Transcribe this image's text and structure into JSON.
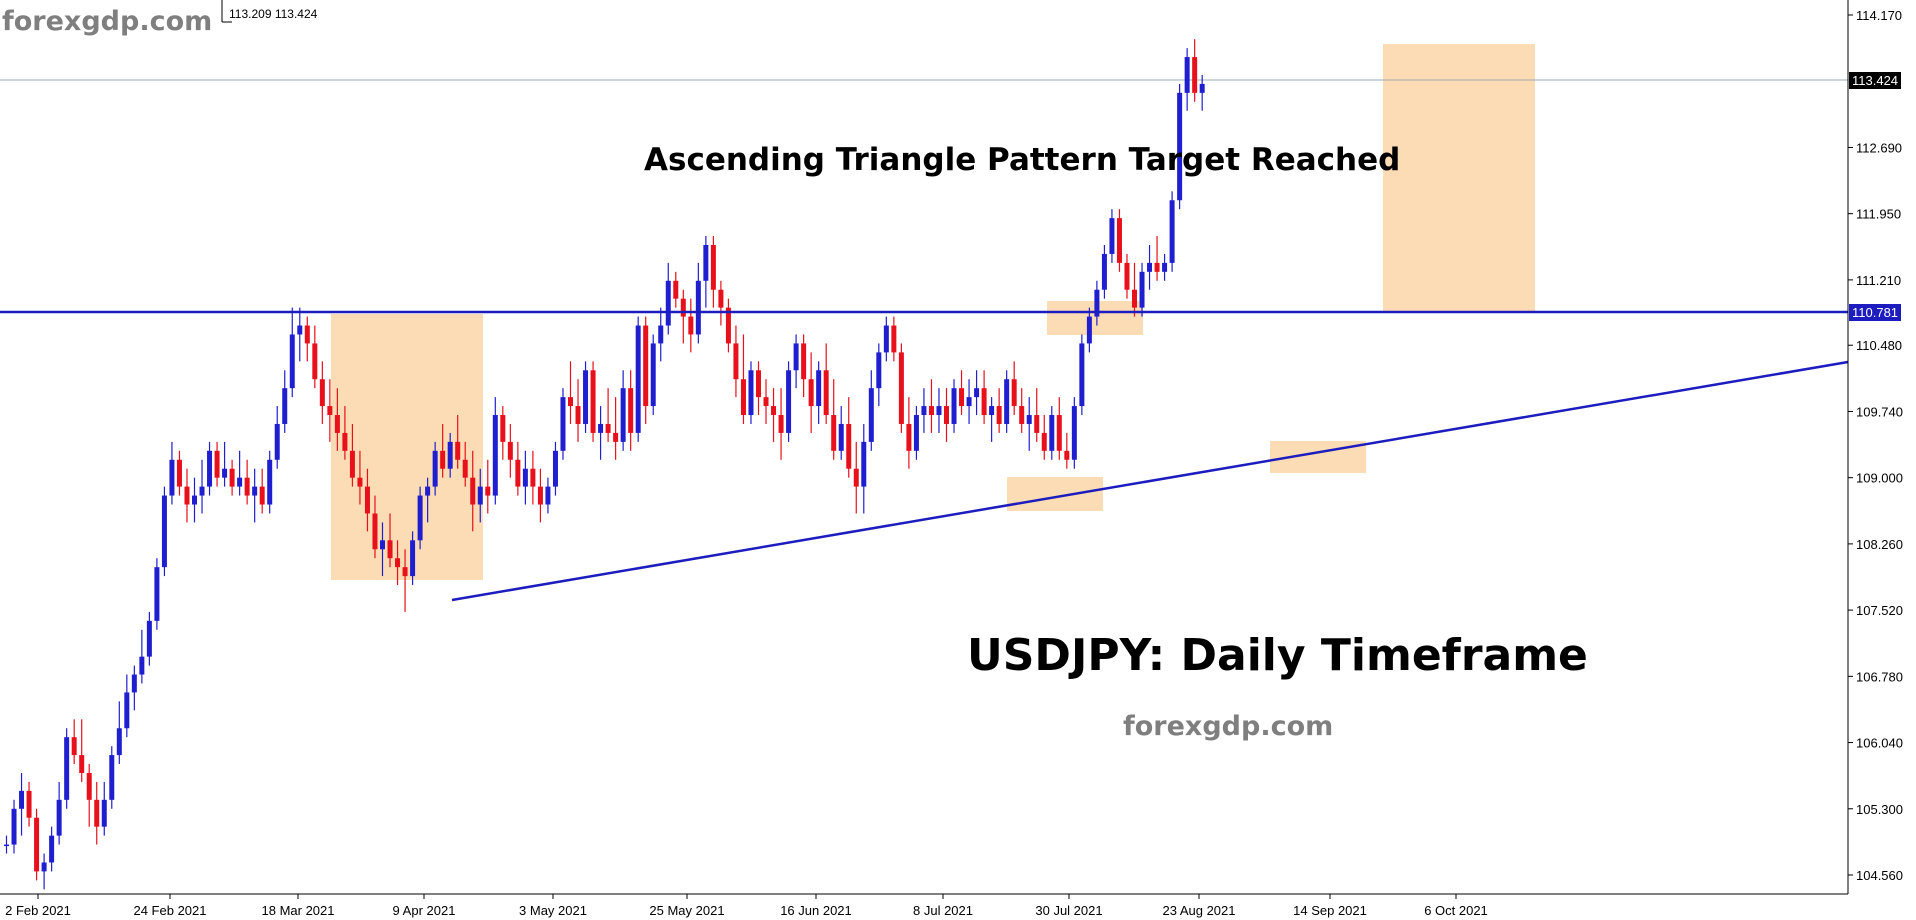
{
  "brand": "forexgdp.com",
  "ohlc_readout": "113.209 113.424",
  "annotations": {
    "pattern": "Ascending Triangle Pattern Target Reached",
    "symbol_timeframe": "USDJPY:  Daily Timeframe",
    "site": "forexgdp.com"
  },
  "current_price_label": "113.424",
  "resistance_label": "110.781",
  "colors": {
    "bull": "#1f1fd0",
    "bear": "#e8101a",
    "highlight": "#fbdcb4",
    "trendline": "#1c1cbf",
    "grid": "#b0b0b0"
  },
  "chart_data": {
    "type": "candlestick",
    "title": "",
    "xlabel": "",
    "ylabel": "",
    "ylim": [
      104.2,
      114.3
    ],
    "y_ticks": [
      "114.170",
      "113.424",
      "112.690",
      "111.950",
      "111.210",
      "110.781",
      "110.480",
      "109.740",
      "109.000",
      "108.260",
      "107.520",
      "106.780",
      "106.040",
      "105.300",
      "104.560"
    ],
    "x_ticks": [
      "2 Feb 2021",
      "24 Feb 2021",
      "18 Mar 2021",
      "9 Apr 2021",
      "3 May 2021",
      "25 May 2021",
      "16 Jun 2021",
      "8 Jul 2021",
      "30 Jul 2021",
      "23 Aug 2021",
      "14 Sep 2021",
      "6 Oct 2021"
    ],
    "candles": [
      [
        104.9,
        105.0,
        104.8,
        104.9
      ],
      [
        104.9,
        105.4,
        104.8,
        105.3
      ],
      [
        105.3,
        105.7,
        105.0,
        105.5
      ],
      [
        105.5,
        105.6,
        105.1,
        105.2
      ],
      [
        105.2,
        105.3,
        104.5,
        104.6
      ],
      [
        104.6,
        104.8,
        104.4,
        104.7
      ],
      [
        104.7,
        105.1,
        104.6,
        105.0
      ],
      [
        105.0,
        105.6,
        104.9,
        105.4
      ],
      [
        105.4,
        106.2,
        105.3,
        106.1
      ],
      [
        106.1,
        106.3,
        105.8,
        105.9
      ],
      [
        105.9,
        106.3,
        105.6,
        105.7
      ],
      [
        105.7,
        105.8,
        105.1,
        105.4
      ],
      [
        105.4,
        105.6,
        104.9,
        105.1
      ],
      [
        105.1,
        105.6,
        105.0,
        105.4
      ],
      [
        105.4,
        106.0,
        105.3,
        105.9
      ],
      [
        105.9,
        106.5,
        105.8,
        106.2
      ],
      [
        106.2,
        106.8,
        106.1,
        106.6
      ],
      [
        106.6,
        106.9,
        106.4,
        106.8
      ],
      [
        106.8,
        107.3,
        106.7,
        107.0
      ],
      [
        107.0,
        107.5,
        106.9,
        107.4
      ],
      [
        107.4,
        108.1,
        107.3,
        108.0
      ],
      [
        108.0,
        108.9,
        107.9,
        108.8
      ],
      [
        108.8,
        109.4,
        108.7,
        109.2
      ],
      [
        109.2,
        109.3,
        108.8,
        108.9
      ],
      [
        108.9,
        109.1,
        108.5,
        108.7
      ],
      [
        108.7,
        109.0,
        108.5,
        108.8
      ],
      [
        108.8,
        109.2,
        108.6,
        108.9
      ],
      [
        108.9,
        109.4,
        108.8,
        109.3
      ],
      [
        109.3,
        109.4,
        108.9,
        109.0
      ],
      [
        109.0,
        109.4,
        108.9,
        109.1
      ],
      [
        109.1,
        109.2,
        108.8,
        108.9
      ],
      [
        108.9,
        109.3,
        108.8,
        109.0
      ],
      [
        109.0,
        109.2,
        108.7,
        108.8
      ],
      [
        108.8,
        109.1,
        108.5,
        108.9
      ],
      [
        108.9,
        109.1,
        108.6,
        108.7
      ],
      [
        108.7,
        109.3,
        108.6,
        109.2
      ],
      [
        109.2,
        109.8,
        109.1,
        109.6
      ],
      [
        109.6,
        110.2,
        109.5,
        110.0
      ],
      [
        110.0,
        110.9,
        109.9,
        110.6
      ],
      [
        110.6,
        110.9,
        110.3,
        110.7
      ],
      [
        110.7,
        110.8,
        110.3,
        110.5
      ],
      [
        110.5,
        110.7,
        110.0,
        110.1
      ],
      [
        110.1,
        110.3,
        109.6,
        109.8
      ],
      [
        109.8,
        110.1,
        109.4,
        109.7
      ],
      [
        109.7,
        110.0,
        109.3,
        109.5
      ],
      [
        109.5,
        109.8,
        109.2,
        109.3
      ],
      [
        109.3,
        109.6,
        108.9,
        109.0
      ],
      [
        109.0,
        109.3,
        108.7,
        108.9
      ],
      [
        108.9,
        109.1,
        108.4,
        108.6
      ],
      [
        108.6,
        108.8,
        108.1,
        108.2
      ],
      [
        108.2,
        108.5,
        107.9,
        108.3
      ],
      [
        108.3,
        108.6,
        108.0,
        108.1
      ],
      [
        108.1,
        108.3,
        107.8,
        108.0
      ],
      [
        108.0,
        108.2,
        107.5,
        107.9
      ],
      [
        107.9,
        108.4,
        107.8,
        108.3
      ],
      [
        108.3,
        108.9,
        108.2,
        108.8
      ],
      [
        108.8,
        109.0,
        108.5,
        108.9
      ],
      [
        108.9,
        109.4,
        108.8,
        109.3
      ],
      [
        109.3,
        109.6,
        109.0,
        109.1
      ],
      [
        109.1,
        109.5,
        109.0,
        109.4
      ],
      [
        109.4,
        109.7,
        109.1,
        109.2
      ],
      [
        109.2,
        109.4,
        108.9,
        109.0
      ],
      [
        109.0,
        109.3,
        108.4,
        108.7
      ],
      [
        108.7,
        109.1,
        108.5,
        108.9
      ],
      [
        108.9,
        109.2,
        108.6,
        108.8
      ],
      [
        108.8,
        109.9,
        108.7,
        109.7
      ],
      [
        109.7,
        109.8,
        109.2,
        109.4
      ],
      [
        109.4,
        109.6,
        109.0,
        109.2
      ],
      [
        109.2,
        109.4,
        108.8,
        108.9
      ],
      [
        108.9,
        109.3,
        108.7,
        109.1
      ],
      [
        109.1,
        109.3,
        108.7,
        108.9
      ],
      [
        108.9,
        109.1,
        108.5,
        108.7
      ],
      [
        108.7,
        109.0,
        108.6,
        108.9
      ],
      [
        108.9,
        109.4,
        108.8,
        109.3
      ],
      [
        109.3,
        110.0,
        109.2,
        109.9
      ],
      [
        109.9,
        110.3,
        109.6,
        109.8
      ],
      [
        109.8,
        110.1,
        109.4,
        109.6
      ],
      [
        109.6,
        110.3,
        109.5,
        110.2
      ],
      [
        110.2,
        110.3,
        109.4,
        109.5
      ],
      [
        109.5,
        109.8,
        109.2,
        109.6
      ],
      [
        109.6,
        110.0,
        109.4,
        109.5
      ],
      [
        109.5,
        109.9,
        109.2,
        109.4
      ],
      [
        109.4,
        110.2,
        109.3,
        110.0
      ],
      [
        110.0,
        110.2,
        109.3,
        109.5
      ],
      [
        109.5,
        110.8,
        109.4,
        110.7
      ],
      [
        110.7,
        110.8,
        109.6,
        109.8
      ],
      [
        109.8,
        110.6,
        109.7,
        110.5
      ],
      [
        110.5,
        110.9,
        110.3,
        110.7
      ],
      [
        110.7,
        111.4,
        110.6,
        111.2
      ],
      [
        111.2,
        111.3,
        110.9,
        111.0
      ],
      [
        111.0,
        111.1,
        110.5,
        110.8
      ],
      [
        110.8,
        111.0,
        110.4,
        110.6
      ],
      [
        110.6,
        111.4,
        110.5,
        111.2
      ],
      [
        111.2,
        111.7,
        110.9,
        111.6
      ],
      [
        111.6,
        111.7,
        110.9,
        111.1
      ],
      [
        111.1,
        111.2,
        110.7,
        110.9
      ],
      [
        110.9,
        111.0,
        110.4,
        110.5
      ],
      [
        110.5,
        110.7,
        109.9,
        110.1
      ],
      [
        110.1,
        110.6,
        109.6,
        109.7
      ],
      [
        109.7,
        110.3,
        109.6,
        110.2
      ],
      [
        110.2,
        110.3,
        109.7,
        109.9
      ],
      [
        109.9,
        110.1,
        109.6,
        109.8
      ],
      [
        109.8,
        110.0,
        109.4,
        109.7
      ],
      [
        109.7,
        110.0,
        109.2,
        109.5
      ],
      [
        109.5,
        110.3,
        109.4,
        110.2
      ],
      [
        110.2,
        110.6,
        110.0,
        110.5
      ],
      [
        110.5,
        110.6,
        109.9,
        110.1
      ],
      [
        110.1,
        110.4,
        109.5,
        109.8
      ],
      [
        109.8,
        110.3,
        109.6,
        110.2
      ],
      [
        110.2,
        110.5,
        109.6,
        109.7
      ],
      [
        109.7,
        110.1,
        109.2,
        109.3
      ],
      [
        109.3,
        109.8,
        109.2,
        109.6
      ],
      [
        109.6,
        109.9,
        109.0,
        109.1
      ],
      [
        109.1,
        109.4,
        108.6,
        108.9
      ],
      [
        108.9,
        109.6,
        108.6,
        109.4
      ],
      [
        109.4,
        110.2,
        109.3,
        110.0
      ],
      [
        110.0,
        110.5,
        109.8,
        110.4
      ],
      [
        110.4,
        110.8,
        110.3,
        110.7
      ],
      [
        110.7,
        110.8,
        110.3,
        110.4
      ],
      [
        110.4,
        110.5,
        109.5,
        109.6
      ],
      [
        109.6,
        109.9,
        109.1,
        109.3
      ],
      [
        109.3,
        109.8,
        109.2,
        109.7
      ],
      [
        109.7,
        110.0,
        109.5,
        109.8
      ],
      [
        109.8,
        110.1,
        109.5,
        109.7
      ],
      [
        109.7,
        110.0,
        109.5,
        109.8
      ],
      [
        109.8,
        110.0,
        109.4,
        109.6
      ],
      [
        109.6,
        110.1,
        109.5,
        110.0
      ],
      [
        110.0,
        110.2,
        109.7,
        109.8
      ],
      [
        109.8,
        110.1,
        109.6,
        109.9
      ],
      [
        109.9,
        110.2,
        109.7,
        110.0
      ],
      [
        110.0,
        110.2,
        109.6,
        109.7
      ],
      [
        109.7,
        109.9,
        109.4,
        109.8
      ],
      [
        109.8,
        110.0,
        109.5,
        109.6
      ],
      [
        109.6,
        110.2,
        109.5,
        110.1
      ],
      [
        110.1,
        110.3,
        109.7,
        109.8
      ],
      [
        109.8,
        110.0,
        109.5,
        109.6
      ],
      [
        109.6,
        109.9,
        109.3,
        109.7
      ],
      [
        109.7,
        110.0,
        109.4,
        109.5
      ],
      [
        109.5,
        109.7,
        109.2,
        109.3
      ],
      [
        109.3,
        109.8,
        109.2,
        109.7
      ],
      [
        109.7,
        109.9,
        109.2,
        109.3
      ],
      [
        109.3,
        109.5,
        109.1,
        109.2
      ],
      [
        109.2,
        109.9,
        109.1,
        109.8
      ],
      [
        109.8,
        110.6,
        109.7,
        110.5
      ],
      [
        110.5,
        110.9,
        110.4,
        110.8
      ],
      [
        110.8,
        111.2,
        110.7,
        111.1
      ],
      [
        111.1,
        111.6,
        111.0,
        111.5
      ],
      [
        111.5,
        112.0,
        111.4,
        111.9
      ],
      [
        111.9,
        112.0,
        111.3,
        111.4
      ],
      [
        111.4,
        111.5,
        111.0,
        111.1
      ],
      [
        111.1,
        111.4,
        110.8,
        110.9
      ],
      [
        110.9,
        111.4,
        110.8,
        111.3
      ],
      [
        111.3,
        111.6,
        111.1,
        111.4
      ],
      [
        111.4,
        111.7,
        111.2,
        111.3
      ],
      [
        111.3,
        111.5,
        111.2,
        111.4
      ],
      [
        111.4,
        112.2,
        111.3,
        112.1
      ],
      [
        112.1,
        113.4,
        112.0,
        113.3
      ],
      [
        113.3,
        113.8,
        113.1,
        113.7
      ],
      [
        113.7,
        113.9,
        113.2,
        113.3
      ],
      [
        113.3,
        113.5,
        113.1,
        113.4
      ]
    ]
  }
}
